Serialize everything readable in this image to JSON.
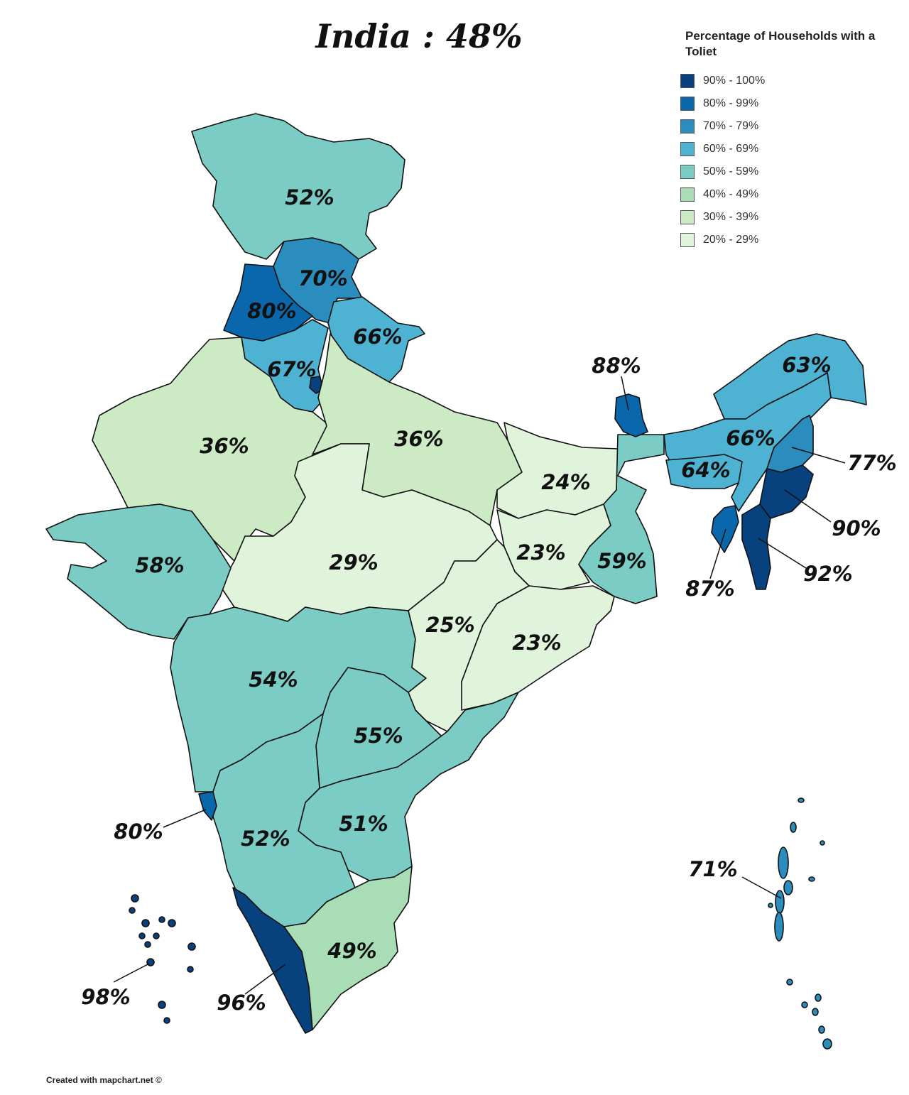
{
  "title": "India : 48%",
  "legend": {
    "title": "Percentage of Households with a Toliet",
    "items": [
      {
        "label": "90% - 100%",
        "color": "#08427e"
      },
      {
        "label": "80% - 99%",
        "color": "#0a67ac"
      },
      {
        "label": "70% - 79%",
        "color": "#2b8cbe"
      },
      {
        "label": "60% - 69%",
        "color": "#4eb2d3"
      },
      {
        "label": "50% - 59%",
        "color": "#7bccc4"
      },
      {
        "label": "40% - 49%",
        "color": "#a8ddb5"
      },
      {
        "label": "30% - 39%",
        "color": "#ccebc5"
      },
      {
        "label": "20% - 29%",
        "color": "#e0f3db"
      }
    ]
  },
  "regions": [
    {
      "id": "jammu-kashmir",
      "label": "52%",
      "tier": 4
    },
    {
      "id": "himachal",
      "label": "70%",
      "tier": 2
    },
    {
      "id": "punjab",
      "label": "80%",
      "tier": 1
    },
    {
      "id": "uttarakhand",
      "label": "66%",
      "tier": 3
    },
    {
      "id": "haryana",
      "label": "67%",
      "tier": 3
    },
    {
      "id": "delhi",
      "label": "",
      "tier": 0
    },
    {
      "id": "rajasthan",
      "label": "36%",
      "tier": 6
    },
    {
      "id": "uttar-pradesh",
      "label": "36%",
      "tier": 6
    },
    {
      "id": "bihar",
      "label": "24%",
      "tier": 7
    },
    {
      "id": "jharkhand",
      "label": "23%",
      "tier": 7
    },
    {
      "id": "west-bengal",
      "label": "59%",
      "tier": 4
    },
    {
      "id": "madhya-pradesh",
      "label": "29%",
      "tier": 7
    },
    {
      "id": "gujarat",
      "label": "58%",
      "tier": 4
    },
    {
      "id": "maharashtra",
      "label": "54%",
      "tier": 4
    },
    {
      "id": "chhattisgarh",
      "label": "25%",
      "tier": 7
    },
    {
      "id": "odisha",
      "label": "23%",
      "tier": 7
    },
    {
      "id": "telangana",
      "label": "55%",
      "tier": 4
    },
    {
      "id": "andhra-pradesh",
      "label": "51%",
      "tier": 4
    },
    {
      "id": "karnataka",
      "label": "52%",
      "tier": 4
    },
    {
      "id": "goa",
      "label": "80%",
      "tier": 1
    },
    {
      "id": "kerala",
      "label": "96%",
      "tier": 0
    },
    {
      "id": "tamil-nadu",
      "label": "49%",
      "tier": 5
    },
    {
      "id": "sikkim",
      "label": "88%",
      "tier": 1
    },
    {
      "id": "arunachal",
      "label": "63%",
      "tier": 3
    },
    {
      "id": "assam",
      "label": "66%",
      "tier": 3
    },
    {
      "id": "meghalaya",
      "label": "64%",
      "tier": 3
    },
    {
      "id": "nagaland",
      "label": "77%",
      "tier": 2
    },
    {
      "id": "manipur",
      "label": "90%",
      "tier": 0
    },
    {
      "id": "mizoram",
      "label": "92%",
      "tier": 0
    },
    {
      "id": "tripura",
      "label": "87%",
      "tier": 1
    },
    {
      "id": "lakshadweep",
      "label": "98%",
      "tier": 0
    },
    {
      "id": "andaman-nicobar",
      "label": "71%",
      "tier": 2
    }
  ],
  "footer": "Created with mapchart.net ©"
}
